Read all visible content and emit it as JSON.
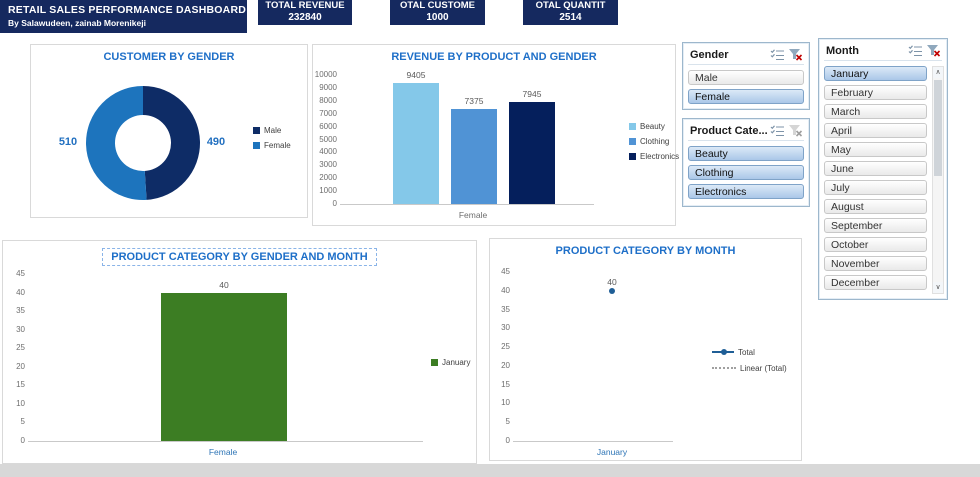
{
  "header": {
    "title": "RETAIL SALES PERFORMANCE DASHBOARD",
    "subtitle": "By Salawudeen, zainab Morenikeji",
    "bg_color": "#15295f"
  },
  "kpis": [
    {
      "label": "TOTAL REVENUE",
      "value": "232840"
    },
    {
      "label": "OTAL CUSTOME",
      "value": "1000"
    },
    {
      "label": "OTAL QUANTIT",
      "value": "2514"
    }
  ],
  "colors": {
    "title_blue": "#1e6fc8",
    "axis_gray": "#6e6e6e",
    "data_label_gray": "#595959",
    "x_label_blue": "#2e75b6",
    "panel_border": "#d9d9d9",
    "navy": "#15295f"
  },
  "chart_data": [
    {
      "type": "pie",
      "subtype": "donut",
      "title": "CUSTOMER BY GENDER",
      "labels": [
        "Male",
        "Female"
      ],
      "values": [
        490,
        510
      ],
      "colors": [
        "#0e2c66",
        "#1d74bd"
      ],
      "data_labels": [
        "490",
        "510"
      ],
      "legend_position": "right"
    },
    {
      "type": "bar",
      "title": "REVENUE BY PRODUCT AND GENDER",
      "categories": [
        "Female"
      ],
      "series": [
        {
          "name": "Beauty",
          "values": [
            9405
          ],
          "color": "#84c8e9"
        },
        {
          "name": "Clothing",
          "values": [
            7375
          ],
          "color": "#5093d5"
        },
        {
          "name": "Electronics",
          "values": [
            7945
          ],
          "color": "#051f5c"
        }
      ],
      "ylim": [
        0,
        10000
      ],
      "ytick_step": 1000,
      "grid": false,
      "legend_position": "right"
    },
    {
      "type": "bar",
      "title": "PRODUCT CATEGORY BY GENDER AND MONTH",
      "categories": [
        "Female"
      ],
      "series": [
        {
          "name": "January",
          "values": [
            40
          ],
          "color": "#3c7d23"
        }
      ],
      "ylim": [
        0,
        45
      ],
      "ytick_step": 5,
      "grid": false,
      "legend_position": "right",
      "title_selected": true
    },
    {
      "type": "line",
      "title": "PRODUCT CATEGORY BY MONTH",
      "categories": [
        "January"
      ],
      "series": [
        {
          "name": "Total",
          "values": [
            40
          ],
          "color": "#1f5e96",
          "marker": "circle"
        },
        {
          "name": "Linear (Total)",
          "values": [],
          "color": "#a0a0a0",
          "style": "dotted"
        }
      ],
      "ylim": [
        0,
        45
      ],
      "ytick_step": 5,
      "grid": false,
      "legend_position": "right"
    }
  ],
  "slicers": [
    {
      "title": "Gender",
      "items": [
        {
          "label": "Male",
          "selected": false
        },
        {
          "label": "Female",
          "selected": true
        }
      ],
      "clear_filter_enabled": true
    },
    {
      "title": "Product Cate...",
      "items": [
        {
          "label": "Beauty",
          "selected": true
        },
        {
          "label": "Clothing",
          "selected": true
        },
        {
          "label": "Electronics",
          "selected": true
        }
      ],
      "clear_filter_enabled": false
    },
    {
      "title": "Month",
      "items": [
        {
          "label": "January",
          "selected": true
        },
        {
          "label": "February",
          "selected": false
        },
        {
          "label": "March",
          "selected": false
        },
        {
          "label": "April",
          "selected": false
        },
        {
          "label": "May",
          "selected": false
        },
        {
          "label": "June",
          "selected": false
        },
        {
          "label": "July",
          "selected": false
        },
        {
          "label": "August",
          "selected": false
        },
        {
          "label": "September",
          "selected": false
        },
        {
          "label": "October",
          "selected": false
        },
        {
          "label": "November",
          "selected": false
        },
        {
          "label": "December",
          "selected": false
        }
      ],
      "clear_filter_enabled": true,
      "scrollbar": true
    }
  ],
  "icons": {
    "multi_select": "multi-select-icon",
    "clear_filter": "clear-filter-icon",
    "scroll_up_glyph": "∧",
    "scroll_down_glyph": "∨"
  }
}
